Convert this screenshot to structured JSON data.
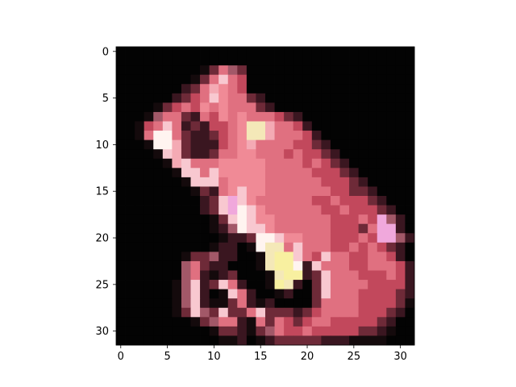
{
  "chart_data": {
    "type": "heatmap",
    "title": "",
    "xlabel": "",
    "ylabel": "",
    "xlim": [
      -0.5,
      31.5
    ],
    "ylim": [
      31.5,
      -0.5
    ],
    "x_ticks": [
      0,
      5,
      10,
      15,
      20,
      25,
      30
    ],
    "y_ticks": [
      0,
      5,
      10,
      15,
      20,
      25,
      30
    ],
    "x_tick_labels": [
      "0",
      "5",
      "10",
      "15",
      "20",
      "25",
      "30"
    ],
    "y_tick_labels": [
      "0",
      "5",
      "10",
      "15",
      "20",
      "25",
      "30"
    ],
    "grid": false,
    "legend": "none",
    "image_width": 32,
    "image_height": 32,
    "palette": {
      ".": "#030303",
      "b": "#140a0c",
      "d": "#3a1620",
      "m": "#6e2a38",
      "r": "#c2485c",
      "s": "#e07080",
      "p": "#f08a96",
      "l": "#f4aab4",
      "q": "#f8c8d0",
      "w": "#fff4f0",
      "c": "#f4e8b8",
      "y": "#f8f0a0",
      "n": "#a25868",
      "v": "#f0a8dc"
    },
    "pixel_rows": [
      "................................",
      "................................",
      ".........bmsnm..................",
      "........bmsqsr..................",
      ".......dmslpsr..................",
      "......dmrsqpssmd................",
      "....bmrsrpspsssmd...............",
      "...bnssmdsrpspsssrmd............",
      "..brsqsdmdrrspcclssrd...........",
      "..bswwsmddmrspcclsssrd..........",
      "...bwwlmdddrsplssssrrmd.........",
      "....bqlmddmssppsssrsrrmd........",
      ".....blqssspppppssssrsrmd.......",
      "......bqqsqpppppsssssrrrmd......",
      ".......bqqqsppppssssssrrrmd.....",
      "........bmdspqppsssssssrrmmd....",
      ".........dmqvqpssssssrrsrrrmd...",
      ".........dmqvwqpssssssrrsrrrmd..",
      "..........bmqwqppssssssrrrsrvnd.",
      "..........bdnwqqpssssssrrrmsvvd.",
      "...........bddmwwqppsssrrrsrvvnd",
      "..........bdd.bwccsqsssrrsrsrmd.",
      ".......bmmndd..bcyyqsrqssrrssrd.",
      ".......nsmdd...bcyywdqsssrrsssrd",
      ".......nsdbdm...bcyydmqsssrrrsrd",
      "......bnqdmqsd..bycd.mqssssrrrrd",
      "......bnqd.bqsd..bd..mqsssrrrrmd",
      "......bnqdbbmsdbd....mssssrrrrmb",
      "......bmqnmqmmsqmmmdmrssssrrrmd.",
      "........bmnssdbsmsrmrssrrrrrmd..",
      "..........bmmdbmnsrrsrrrrrmmdb..",
      "...........bbd.bdmmmmmdddbbbb..."
    ]
  }
}
